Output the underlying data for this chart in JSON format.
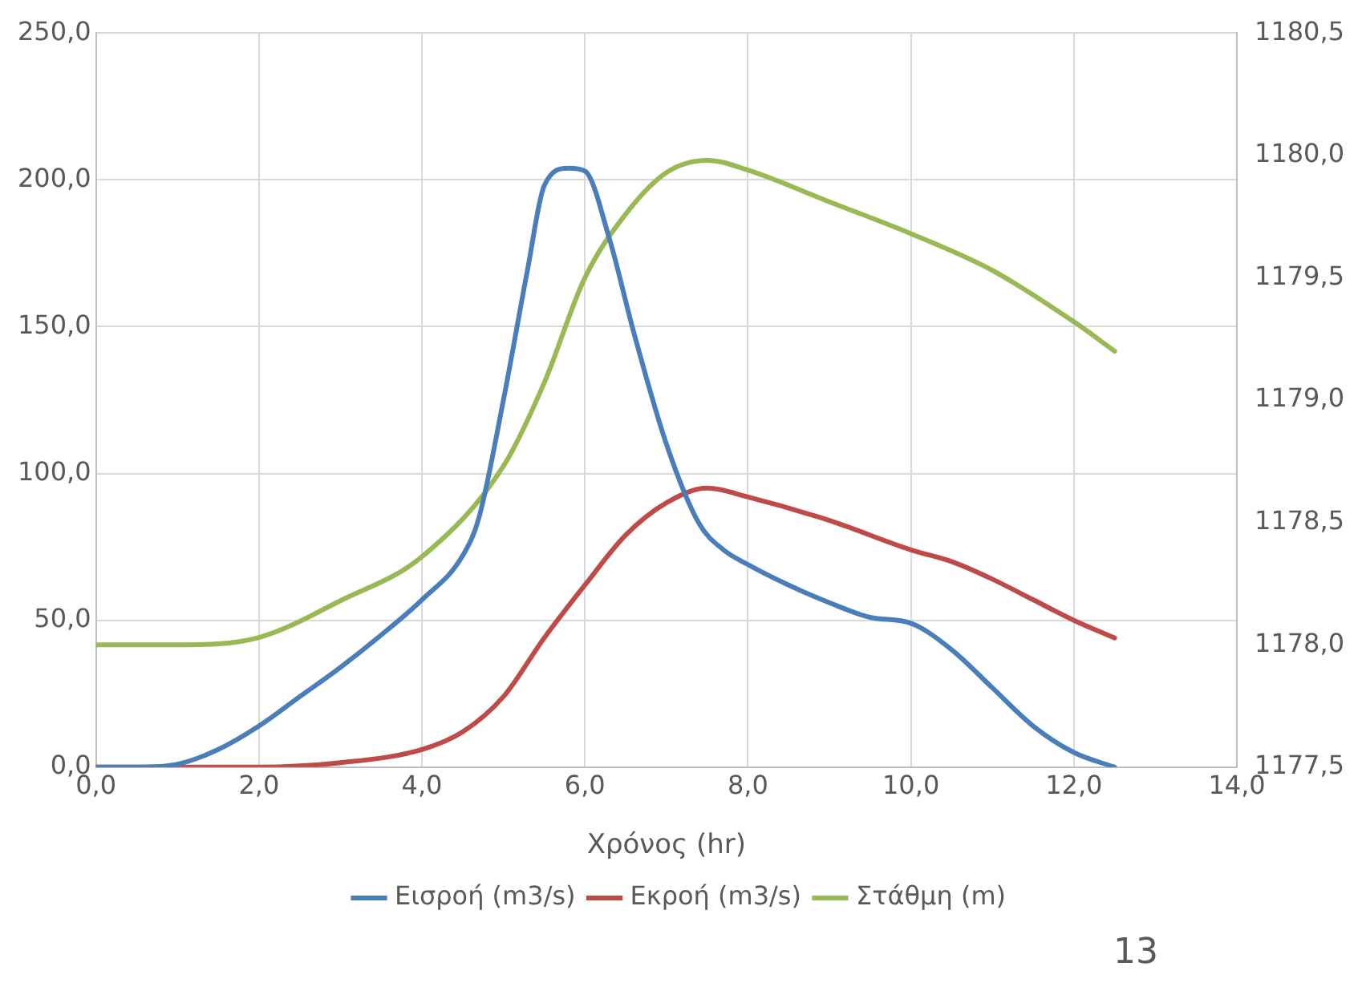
{
  "chart_data": {
    "type": "line",
    "xlabel": "Χρόνος (hr)",
    "annotations": [
      "13"
    ],
    "grid": true,
    "legend": "bottom",
    "marker": "none",
    "line_style": "solid",
    "xlim": [
      0,
      14
    ],
    "xticks": [
      {
        "value": 0,
        "label": "0,0"
      },
      {
        "value": 2,
        "label": "2,0"
      },
      {
        "value": 4,
        "label": "4,0"
      },
      {
        "value": 6,
        "label": "6,0"
      },
      {
        "value": 8,
        "label": "8,0"
      },
      {
        "value": 10,
        "label": "10,0"
      },
      {
        "value": 12,
        "label": "12,0"
      },
      {
        "value": 14,
        "label": "14,0"
      }
    ],
    "ylim": [
      0,
      250
    ],
    "yticks": [
      {
        "value": 0,
        "label": "0,0"
      },
      {
        "value": 50,
        "label": "50,0"
      },
      {
        "value": 100,
        "label": "100,0"
      },
      {
        "value": 150,
        "label": "150,0"
      },
      {
        "value": 200,
        "label": "200,0"
      },
      {
        "value": 250,
        "label": "250,0"
      }
    ],
    "y2lim": [
      1177.5,
      1180.5
    ],
    "y2ticks": [
      {
        "value": 1177.5,
        "label": "1177,5"
      },
      {
        "value": 1178,
        "label": "1178,0"
      },
      {
        "value": 1178.5,
        "label": "1178,5"
      },
      {
        "value": 1179,
        "label": "1179,0"
      },
      {
        "value": 1179.5,
        "label": "1179,5"
      },
      {
        "value": 1180,
        "label": "1180,0"
      },
      {
        "value": 1180.5,
        "label": "1180,5"
      }
    ],
    "series": [
      {
        "name": "Εισροή (m3/s)",
        "color": "#4a7ebb",
        "x": [
          0,
          0.5,
          1,
          1.5,
          2,
          2.5,
          3,
          3.5,
          4,
          4.5,
          4.7,
          5,
          5.3,
          5.5,
          5.8,
          6,
          6.3,
          6.6,
          7,
          7.4,
          7.7,
          8,
          8.5,
          9,
          9.5,
          10,
          10.5,
          11,
          11.5,
          12,
          12.5
        ],
        "values": [
          0,
          0,
          1,
          6,
          14,
          24,
          34,
          45,
          57,
          72,
          85,
          125,
          170,
          198,
          204,
          203,
          180,
          148,
          110,
          83,
          74,
          69,
          62,
          56,
          51,
          49,
          40,
          27,
          14,
          5,
          0
        ]
      },
      {
        "name": "Εκροή (m3/s)",
        "color": "#be4b48",
        "x": [
          0,
          1,
          2,
          3,
          4,
          4.5,
          5,
          5.5,
          6,
          6.5,
          7,
          7.5,
          8,
          9,
          10,
          10.5,
          11,
          11.5,
          12,
          12.5
        ],
        "values": [
          0,
          0,
          0,
          1.5,
          6,
          12,
          24,
          44,
          62,
          79,
          90,
          95,
          92,
          84,
          74,
          70,
          64,
          57,
          50,
          44
        ]
      },
      {
        "name": "Στάθμη (m)",
        "color": "#98b954",
        "axis": "y2",
        "x": [
          0,
          1,
          2,
          3,
          4,
          5,
          5.5,
          6,
          6.5,
          7,
          7.5,
          8,
          9,
          10,
          11,
          12,
          12.5
        ],
        "values": [
          1178.0,
          1178.0,
          1178.03,
          1178.18,
          1178.36,
          1178.73,
          1179.07,
          1179.5,
          1179.76,
          1179.93,
          1179.98,
          1179.94,
          1179.81,
          1179.68,
          1179.53,
          1179.32,
          1179.2
        ]
      }
    ]
  }
}
